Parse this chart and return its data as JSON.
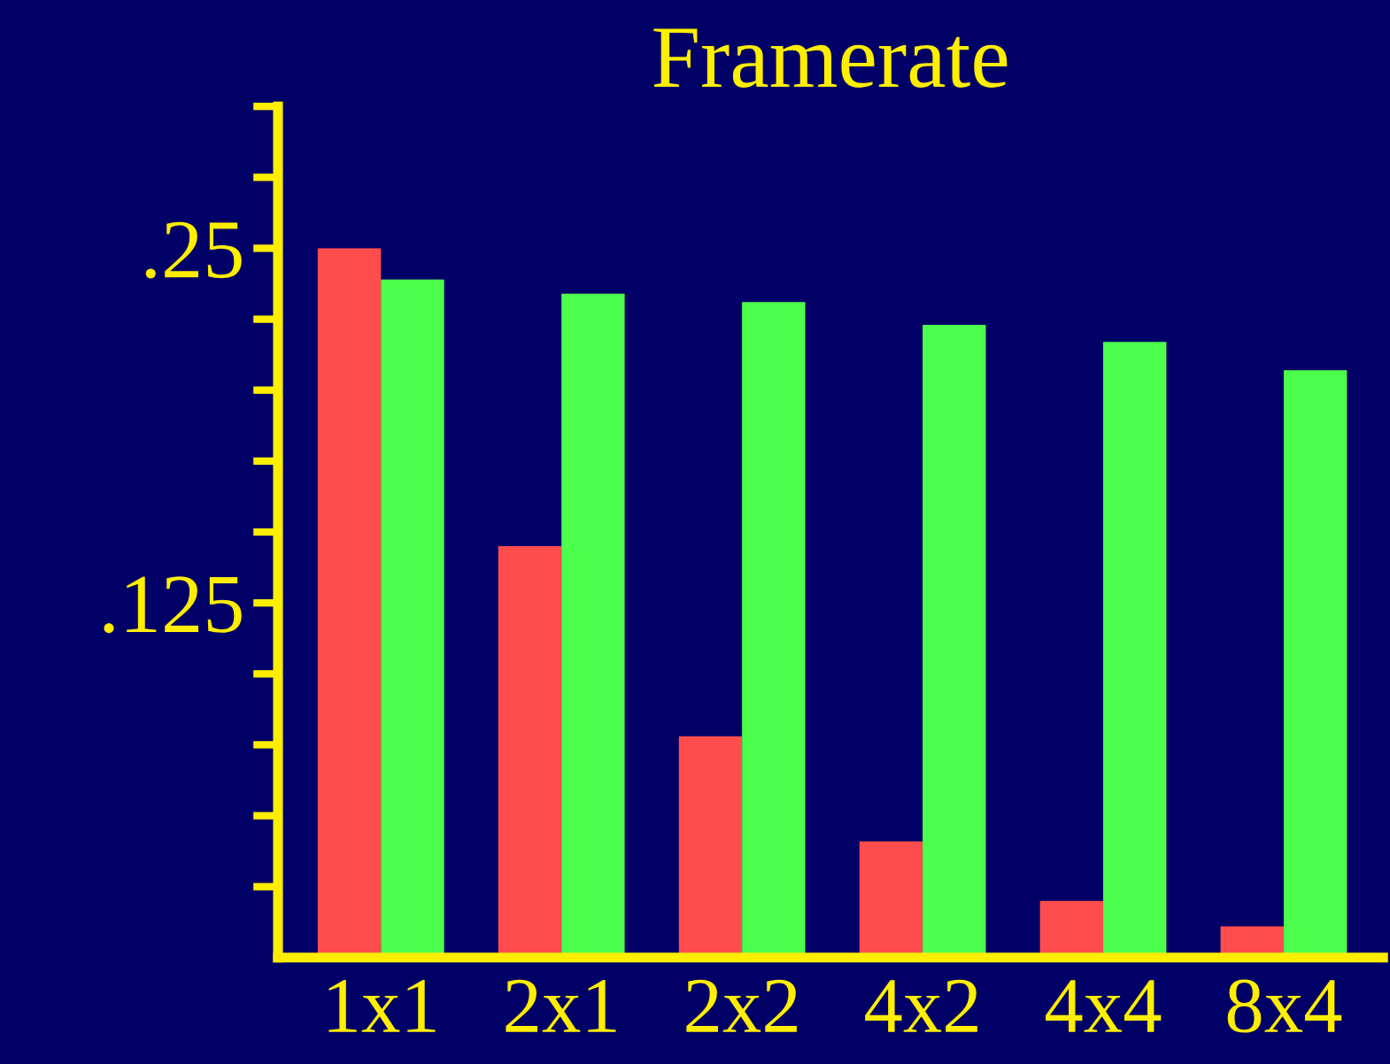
{
  "chart_data": {
    "type": "bar",
    "title": "Framerate",
    "categories": [
      "1x1",
      "2x1",
      "2x2",
      "4x2",
      "4x4",
      "8x4"
    ],
    "series": [
      {
        "color": "#ff4d4d",
        "values": [
          0.25,
          0.145,
          0.078,
          0.041,
          0.02,
          0.011
        ]
      },
      {
        "color": "#4dff4d",
        "values": [
          0.239,
          0.234,
          0.231,
          0.223,
          0.217,
          0.207
        ]
      }
    ],
    "ylim": [
      0,
      0.3
    ],
    "yticks": [
      {
        "value": 0.025,
        "label": null
      },
      {
        "value": 0.05,
        "label": null
      },
      {
        "value": 0.075,
        "label": null
      },
      {
        "value": 0.1,
        "label": null
      },
      {
        "value": 0.125,
        "label": ".125"
      },
      {
        "value": 0.15,
        "label": null
      },
      {
        "value": 0.175,
        "label": null
      },
      {
        "value": 0.2,
        "label": null
      },
      {
        "value": 0.225,
        "label": null
      },
      {
        "value": 0.25,
        "label": ".25"
      },
      {
        "value": 0.275,
        "label": null
      },
      {
        "value": 0.3,
        "label": null
      }
    ],
    "grid": false
  }
}
